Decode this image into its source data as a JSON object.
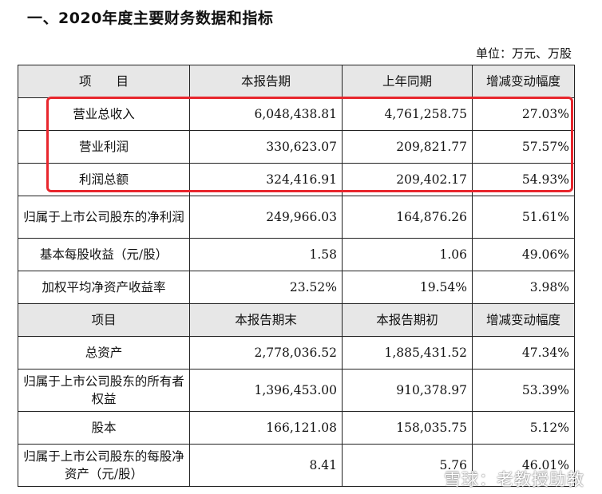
{
  "title": "一、2020年度主要财务数据和指标",
  "unit": "单位：万元、万股",
  "header1": [
    "项　　目",
    "本报告期",
    "上年同期",
    "增减变动幅度"
  ],
  "rows1": [
    [
      "营业总收入",
      "6,048,438.81",
      "4,761,258.75",
      "27.03%"
    ],
    [
      "营业利润",
      "330,623.07",
      "209,821.77",
      "57.57%"
    ],
    [
      "利润总额",
      "324,416.91",
      "209,402.17",
      "54.93%"
    ],
    [
      "归属于上市公司股东的净利润",
      "249,966.03",
      "164,876.26",
      "51.61%"
    ],
    [
      "基本每股收益（元/股）",
      "1.58",
      "1.06",
      "49.06%"
    ],
    [
      "加权平均净资产收益率",
      "23.52%",
      "19.54%",
      "3.98%"
    ]
  ],
  "header2": [
    "项目",
    "本报告期末",
    "本报告期初",
    "增减变动幅度"
  ],
  "rows2": [
    [
      "总资产",
      "2,778,036.52",
      "1,885,431.52",
      "47.34%"
    ],
    [
      "归属于上市公司股东的所有者权益",
      "1,396,453.00",
      "910,378.97",
      "53.39%"
    ],
    [
      "股本",
      "166,121.08",
      "158,035.75",
      "5.12%"
    ],
    [
      "归属于上市公司股东的每股净资产（元/股）",
      "8.41",
      "5.76",
      "46.01%"
    ]
  ],
  "watermark": "雪球：老教授助教",
  "highlight_color": "#e8262d",
  "header_bg": "#e7e7e7"
}
